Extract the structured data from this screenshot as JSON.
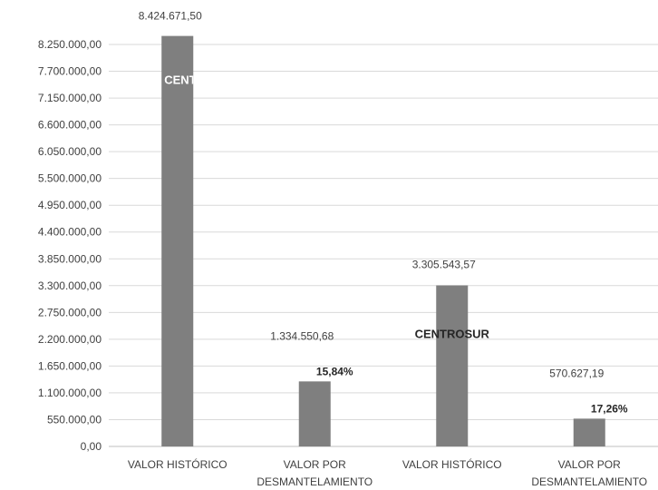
{
  "chart_data": {
    "type": "bar",
    "title": "",
    "xlabel": "",
    "ylabel": "",
    "ylim": [
      0,
      8250000
    ],
    "y_ticks": [
      0,
      550000,
      1100000,
      1650000,
      2200000,
      2750000,
      3300000,
      3850000,
      4400000,
      4950000,
      5500000,
      6050000,
      6600000,
      7150000,
      7700000,
      8250000
    ],
    "y_tick_labels": [
      "0,00",
      "550.000,00",
      "1.100.000,00",
      "1.650.000,00",
      "2.200.000,00",
      "2.750.000,00",
      "3.300.000,00",
      "3.850.000,00",
      "4.400.000,00",
      "4.950.000,00",
      "5.500.000,00",
      "6.050.000,00",
      "6.600.000,00",
      "7.150.000,00",
      "7.700.000,00",
      "8.250.000,00"
    ],
    "grid": true,
    "categories": [
      [
        "VALOR HISTÓRICO"
      ],
      [
        "VALOR POR",
        "DESMANTELAMIENTO"
      ],
      [
        "VALOR HISTÓRICO"
      ],
      [
        "VALOR POR",
        "DESMANTELAMIENTO"
      ]
    ],
    "values": [
      8424671.5,
      1334550.68,
      3305543.57,
      570627.19
    ],
    "value_labels": [
      "8.424.671,50",
      "1.334.550,68",
      "3.305.543,57",
      "570.627,19"
    ],
    "percent_labels": [
      "",
      "15,84%",
      "",
      "17,26%"
    ],
    "group_labels": [
      "CENTROSUR",
      "",
      "CENTROSUR",
      ""
    ],
    "colors": {
      "bar": "#7f7f7f",
      "grid": "#d9d9d9",
      "text": "#404040",
      "axis": "#bfbfbf"
    }
  }
}
